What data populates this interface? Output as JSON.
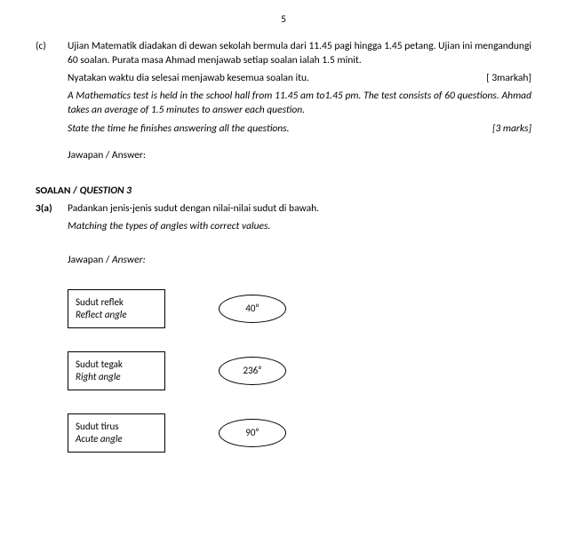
{
  "pageNumber": "5",
  "qC": {
    "label": "(c)",
    "p1": "Ujian Matematik diadakan di dewan sekolah bermula dari 11.45 pagi hingga 1.45 petang. Ujian ini mengandungi 60 soalan. Purata masa Ahmad menjawab setiap soalan ialah 1.5 minit.",
    "p2": "Nyatakan waktu dia selesai menjawab kesemua soalan itu.",
    "m2": "[ 3markah]",
    "p3": "A Mathematics test is held in the school hall from 11.45 am to1.45 pm. The test consists of 60 questions. Ahmad takes an average of 1.5 minutes to answer each question.",
    "p4": "State the time he finishes answering all the questions.",
    "m4": "[3 marks]",
    "ans": "Jawapan / Answer:"
  },
  "q3hdr": {
    "ms": "SOALAN / ",
    "en": "QUESTION 3"
  },
  "q3a": {
    "label": "3(a)",
    "p1": "Padankan jenis-jenis sudut dengan nilai-nilai sudut di bawah.",
    "p2": "Matching the types of angles with correct values.",
    "ans_ms": "Jawapan / ",
    "ans_en": "Answer:"
  },
  "matches": [
    {
      "ms": "Sudut reflek",
      "en": "Reflect angle",
      "val": "40⁰"
    },
    {
      "ms": "Sudut tegak",
      "en": "Right angle",
      "val": "236⁰"
    },
    {
      "ms": "Sudut tirus",
      "en": "Acute angle",
      "val": "90⁰"
    }
  ]
}
